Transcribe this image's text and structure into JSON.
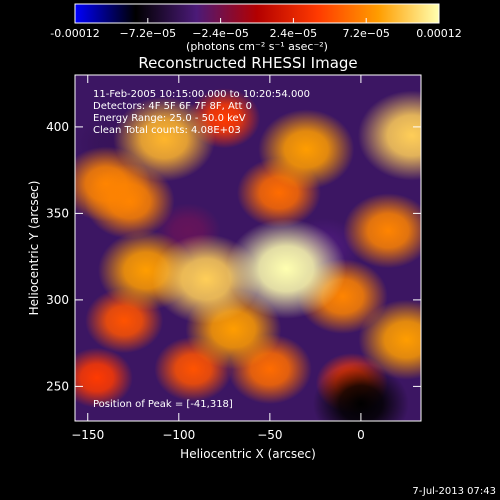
{
  "chart_data": {
    "type": "heatmap",
    "title": "Reconstructed RHESSI Image",
    "xlabel": "Heliocentric X (arcsec)",
    "ylabel": "Heliocentric Y (arcsec)",
    "xlim": [
      -157,
      33
    ],
    "ylim": [
      230,
      430
    ],
    "x_ticks": [
      -150,
      -100,
      -50,
      0
    ],
    "y_ticks": [
      250,
      300,
      350,
      400
    ],
    "colorbar": {
      "ticks": [
        "-0.00012",
        "−7.2e−05",
        "−2.4e−05",
        "2.4e−05",
        "7.2e−05",
        "0.00012"
      ],
      "tick_values": [
        -0.00012,
        -7.2e-05,
        -2.4e-05,
        2.4e-05,
        7.2e-05,
        0.00012
      ],
      "range": [
        -0.00012,
        0.00012
      ],
      "label": "(photons cm⁻² s⁻¹ asec⁻²)",
      "colormap": [
        "#0000ff",
        "#000000",
        "#4b1a78",
        "#b30000",
        "#ff3a00",
        "#ff9d00",
        "#ffffb0"
      ]
    },
    "annotations": [
      "11-Feb-2005 10:15:00.000 to 10:20:54.000",
      "Detectors: 4F 5F 6F 7F 8F, Att 0",
      "Energy Range: 25.0 - 50.0 keV",
      "Clean     Total counts: 4.08E+03"
    ],
    "peak_label": "Position of Peak = [-41,318]",
    "peak": [
      -41,
      318
    ],
    "sources": [
      {
        "x": -41,
        "y": 318,
        "value": 0.00012
      },
      {
        "x": -85,
        "y": 312,
        "value": 0.0001
      },
      {
        "x": -108,
        "y": 393,
        "value": 9e-05
      },
      {
        "x": -140,
        "y": 367,
        "value": 7e-05
      },
      {
        "x": -127,
        "y": 357,
        "value": 7e-05
      },
      {
        "x": -118,
        "y": 317,
        "value": 8e-05
      },
      {
        "x": -30,
        "y": 387,
        "value": 8e-05
      },
      {
        "x": -45,
        "y": 362,
        "value": 6e-05
      },
      {
        "x": 28,
        "y": 395,
        "value": 0.0001
      },
      {
        "x": 15,
        "y": 340,
        "value": 7e-05
      },
      {
        "x": -10,
        "y": 302,
        "value": 7e-05
      },
      {
        "x": 25,
        "y": 277,
        "value": 8e-05
      },
      {
        "x": -70,
        "y": 283,
        "value": 8e-05
      },
      {
        "x": -50,
        "y": 260,
        "value": 6e-05
      },
      {
        "x": -92,
        "y": 260,
        "value": 5e-05
      },
      {
        "x": -130,
        "y": 288,
        "value": 5e-05
      },
      {
        "x": -145,
        "y": 255,
        "value": 4e-05
      },
      {
        "x": -5,
        "y": 252,
        "value": 4e-05
      },
      {
        "x": -75,
        "y": 405,
        "value": 4e-05
      },
      {
        "x": -135,
        "y": 390,
        "value": -5e-05
      },
      {
        "x": 0,
        "y": 240,
        "value": -8e-05
      },
      {
        "x": -95,
        "y": 340,
        "value": -3e-05
      },
      {
        "x": -20,
        "y": 330,
        "value": -4e-05
      }
    ]
  },
  "timestamp": "7-Jul-2013 07:43"
}
